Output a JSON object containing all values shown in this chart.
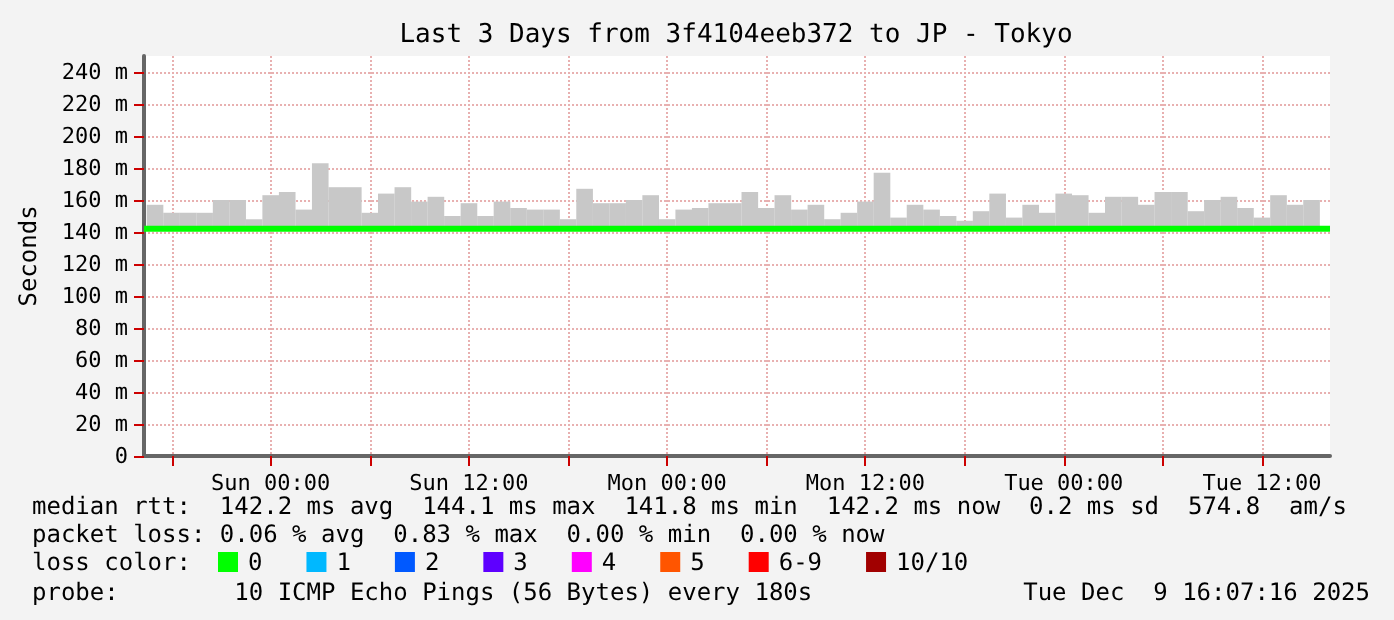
{
  "chart_data": {
    "type": "bar",
    "title": "Last 3 Days from 3f4104eeb372 to JP - Tokyo",
    "ylabel": "Seconds",
    "legend_title": "loss color:",
    "legend": "bottom",
    "grid": true,
    "annotations": [
      "median rtt:  142.2 ms avg  144.1 ms max  141.8 ms min  142.2 ms now  0.2 ms sd  574.8  am/s",
      "packet loss: 0.06 % avg  0.83 % max  0.00 % min  0.00 % now",
      "probe:        10 ICMP Echo Pings (56 Bytes) every 180s",
      "Tue Dec  9 16:07:16 2025"
    ],
    "xlim": [
      "2025-12-06T16:20",
      "2025-12-09T16:07"
    ],
    "xticks": [
      {
        "value": "2025-12-06T18:00",
        "label": null
      },
      {
        "value": "2025-12-07T00:00",
        "label": "Sun 00:00"
      },
      {
        "value": "2025-12-07T06:00",
        "label": null
      },
      {
        "value": "2025-12-07T12:00",
        "label": "Sun 12:00"
      },
      {
        "value": "2025-12-07T18:00",
        "label": null
      },
      {
        "value": "2025-12-08T00:00",
        "label": "Mon 00:00"
      },
      {
        "value": "2025-12-08T06:00",
        "label": null
      },
      {
        "value": "2025-12-08T12:00",
        "label": "Mon 12:00"
      },
      {
        "value": "2025-12-08T18:00",
        "label": null
      },
      {
        "value": "2025-12-09T00:00",
        "label": "Tue 00:00"
      },
      {
        "value": "2025-12-09T06:00",
        "label": null
      },
      {
        "value": "2025-12-09T12:00",
        "label": "Tue 12:00"
      }
    ],
    "ylim": [
      0,
      250
    ],
    "yticks": [
      0,
      {
        "value": 20,
        "label": "20 m"
      },
      {
        "value": 40,
        "label": "40 m"
      },
      {
        "value": 60,
        "label": "60 m"
      },
      {
        "value": 80,
        "label": "80 m"
      },
      {
        "value": 100,
        "label": "100 m"
      },
      {
        "value": 120,
        "label": "120 m"
      },
      {
        "value": 140,
        "label": "140 m"
      },
      {
        "value": 160,
        "label": "160 m"
      },
      {
        "value": 180,
        "label": "180 m"
      },
      {
        "value": 200,
        "label": "200 m"
      },
      {
        "value": 220,
        "label": "220 m"
      },
      {
        "value": 240,
        "label": "240 m"
      }
    ],
    "x": [
      "2025-12-06T17:00",
      "2025-12-06T18:00",
      "2025-12-06T19:00",
      "2025-12-06T20:00",
      "2025-12-06T21:00",
      "2025-12-06T22:00",
      "2025-12-06T23:00",
      "2025-12-07T00:00",
      "2025-12-07T01:00",
      "2025-12-07T02:00",
      "2025-12-07T03:00",
      "2025-12-07T04:00",
      "2025-12-07T05:00",
      "2025-12-07T06:00",
      "2025-12-07T07:00",
      "2025-12-07T08:00",
      "2025-12-07T09:00",
      "2025-12-07T10:00",
      "2025-12-07T11:00",
      "2025-12-07T12:00",
      "2025-12-07T13:00",
      "2025-12-07T14:00",
      "2025-12-07T15:00",
      "2025-12-07T16:00",
      "2025-12-07T17:00",
      "2025-12-07T18:00",
      "2025-12-07T19:00",
      "2025-12-07T20:00",
      "2025-12-07T21:00",
      "2025-12-07T22:00",
      "2025-12-07T23:00",
      "2025-12-08T00:00",
      "2025-12-08T01:00",
      "2025-12-08T02:00",
      "2025-12-08T03:00",
      "2025-12-08T04:00",
      "2025-12-08T05:00",
      "2025-12-08T06:00",
      "2025-12-08T07:00",
      "2025-12-08T08:00",
      "2025-12-08T09:00",
      "2025-12-08T10:00",
      "2025-12-08T11:00",
      "2025-12-08T12:00",
      "2025-12-08T13:00",
      "2025-12-08T14:00",
      "2025-12-08T15:00",
      "2025-12-08T16:00",
      "2025-12-08T17:00",
      "2025-12-08T18:00",
      "2025-12-08T19:00",
      "2025-12-08T20:00",
      "2025-12-08T21:00",
      "2025-12-08T22:00",
      "2025-12-08T23:00",
      "2025-12-09T00:00",
      "2025-12-09T01:00",
      "2025-12-09T02:00",
      "2025-12-09T03:00",
      "2025-12-09T04:00",
      "2025-12-09T05:00",
      "2025-12-09T06:00",
      "2025-12-09T07:00",
      "2025-12-09T08:00",
      "2025-12-09T09:00",
      "2025-12-09T10:00",
      "2025-12-09T11:00",
      "2025-12-09T12:00",
      "2025-12-09T13:00",
      "2025-12-09T14:00",
      "2025-12-09T15:00"
    ],
    "series": [
      {
        "color": "#c8c8c8",
        "base": [
          141,
          141,
          141,
          141,
          141,
          141,
          141,
          141,
          141,
          141,
          141,
          141,
          141,
          141,
          141,
          141,
          141,
          141,
          141,
          141,
          141,
          141,
          141,
          141,
          141,
          141,
          141,
          141,
          141,
          141,
          141,
          141,
          141,
          141,
          141,
          141,
          141,
          141,
          141,
          141,
          141,
          141,
          141,
          141,
          141,
          141,
          141,
          141,
          141,
          141,
          141,
          141,
          141,
          141,
          141,
          141,
          141,
          141,
          141,
          141,
          141,
          141,
          141,
          141,
          141,
          141,
          141,
          141,
          141,
          141,
          141
        ],
        "values": [
          16,
          11,
          11,
          11,
          19,
          19,
          7,
          22,
          24,
          13,
          42,
          27,
          27,
          11,
          23,
          27,
          18,
          21,
          9,
          17,
          9,
          18,
          14,
          13,
          13,
          7,
          26,
          17,
          17,
          19,
          22,
          7,
          13,
          14,
          17,
          17,
          24,
          14,
          22,
          13,
          16,
          7,
          11,
          18,
          36,
          8,
          16,
          13,
          9,
          6,
          12,
          23,
          8,
          16,
          11,
          23,
          22,
          11,
          21,
          21,
          16,
          24,
          24,
          12,
          19,
          21,
          14,
          8,
          22,
          16,
          19
        ]
      },
      {
        "type": "line",
        "name": "0",
        "color": "#00ff00",
        "x": [
          "2025-12-06T16:20",
          "2025-12-09T16:07"
        ],
        "values": [
          142,
          142
        ]
      },
      {
        "type": "line",
        "name": "1",
        "color": "#00b8ff",
        "values": [
          null,
          null,
          null,
          null,
          null,
          null,
          null,
          null,
          null,
          null,
          null,
          null,
          null,
          null,
          null,
          null,
          null,
          null,
          null,
          null,
          null,
          null,
          null,
          null,
          null,
          null,
          null,
          null,
          null,
          null,
          null,
          null,
          null,
          null,
          null,
          null,
          null,
          null,
          null,
          null,
          null,
          null,
          null,
          null,
          null,
          null,
          null,
          null,
          null,
          null,
          null,
          null,
          null,
          null,
          null,
          null,
          null,
          null,
          null,
          null,
          null,
          null,
          null,
          null,
          null,
          null,
          null,
          null,
          null,
          null,
          null
        ]
      },
      {
        "type": "line",
        "name": "2",
        "color": "#0059ff",
        "values": [
          null,
          null,
          null,
          null,
          null,
          null,
          null,
          null,
          null,
          null,
          null,
          null,
          null,
          null,
          null,
          null,
          null,
          null,
          null,
          null,
          null,
          null,
          null,
          null,
          null,
          null,
          null,
          null,
          null,
          null,
          null,
          null,
          null,
          null,
          null,
          null,
          null,
          null,
          null,
          null,
          null,
          null,
          null,
          null,
          null,
          null,
          null,
          null,
          null,
          null,
          null,
          null,
          null,
          null,
          null,
          null,
          null,
          null,
          null,
          null,
          null,
          null,
          null,
          null,
          null,
          null,
          null,
          null,
          null,
          null,
          null
        ]
      },
      {
        "type": "line",
        "name": "3",
        "color": "#5e00ff",
        "values": [
          null,
          null,
          null,
          null,
          null,
          null,
          null,
          null,
          null,
          null,
          null,
          null,
          null,
          null,
          null,
          null,
          null,
          null,
          null,
          null,
          null,
          null,
          null,
          null,
          null,
          null,
          null,
          null,
          null,
          null,
          null,
          null,
          null,
          null,
          null,
          null,
          null,
          null,
          null,
          null,
          null,
          null,
          null,
          null,
          null,
          null,
          null,
          null,
          null,
          null,
          null,
          null,
          null,
          null,
          null,
          null,
          null,
          null,
          null,
          null,
          null,
          null,
          null,
          null,
          null,
          null,
          null,
          null,
          null,
          null,
          null
        ]
      },
      {
        "type": "line",
        "name": "4",
        "color": "#ff00ff",
        "values": [
          null,
          null,
          null,
          null,
          null,
          null,
          null,
          null,
          null,
          null,
          null,
          null,
          null,
          null,
          null,
          null,
          null,
          null,
          null,
          null,
          null,
          null,
          null,
          null,
          null,
          null,
          null,
          null,
          null,
          null,
          null,
          null,
          null,
          null,
          null,
          null,
          null,
          null,
          null,
          null,
          null,
          null,
          null,
          null,
          null,
          null,
          null,
          null,
          null,
          null,
          null,
          null,
          null,
          null,
          null,
          null,
          null,
          null,
          null,
          null,
          null,
          null,
          null,
          null,
          null,
          null,
          null,
          null,
          null,
          null,
          null
        ]
      },
      {
        "type": "line",
        "name": "5",
        "color": "#ff5500",
        "values": [
          null,
          null,
          null,
          null,
          null,
          null,
          null,
          null,
          null,
          null,
          null,
          null,
          null,
          null,
          null,
          null,
          null,
          null,
          null,
          null,
          null,
          null,
          null,
          null,
          null,
          null,
          null,
          null,
          null,
          null,
          null,
          null,
          null,
          null,
          null,
          null,
          null,
          null,
          null,
          null,
          null,
          null,
          null,
          null,
          null,
          null,
          null,
          null,
          null,
          null,
          null,
          null,
          null,
          null,
          null,
          null,
          null,
          null,
          null,
          null,
          null,
          null,
          null,
          null,
          null,
          null,
          null,
          null,
          null,
          null,
          null
        ]
      },
      {
        "type": "line",
        "name": "6-9",
        "color": "#ff0000",
        "values": [
          null,
          null,
          null,
          null,
          null,
          null,
          null,
          null,
          null,
          null,
          null,
          null,
          null,
          null,
          null,
          null,
          null,
          null,
          null,
          null,
          null,
          null,
          null,
          null,
          null,
          null,
          null,
          null,
          null,
          null,
          null,
          null,
          null,
          null,
          null,
          null,
          null,
          null,
          null,
          null,
          null,
          null,
          null,
          null,
          null,
          null,
          null,
          null,
          null,
          null,
          null,
          null,
          null,
          null,
          null,
          null,
          null,
          null,
          null,
          null,
          null,
          null,
          null,
          null,
          null,
          null,
          null,
          null,
          null,
          null,
          null
        ]
      },
      {
        "type": "line",
        "name": "10/10",
        "color": "#a10000",
        "values": [
          null,
          null,
          null,
          null,
          null,
          null,
          null,
          null,
          null,
          null,
          null,
          null,
          null,
          null,
          null,
          null,
          null,
          null,
          null,
          null,
          null,
          null,
          null,
          null,
          null,
          null,
          null,
          null,
          null,
          null,
          null,
          null,
          null,
          null,
          null,
          null,
          null,
          null,
          null,
          null,
          null,
          null,
          null,
          null,
          null,
          null,
          null,
          null,
          null,
          null,
          null,
          null,
          null,
          null,
          null,
          null,
          null,
          null,
          null,
          null,
          null,
          null,
          null,
          null,
          null,
          null,
          null,
          null,
          null,
          null,
          null
        ]
      }
    ]
  }
}
